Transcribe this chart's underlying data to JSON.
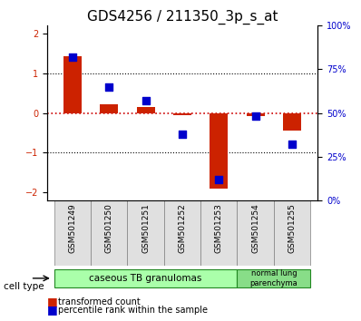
{
  "title": "GDS4256 / 211350_3p_s_at",
  "samples": [
    "GSM501249",
    "GSM501250",
    "GSM501251",
    "GSM501252",
    "GSM501253",
    "GSM501254",
    "GSM501255"
  ],
  "red_bars": [
    1.42,
    0.22,
    0.15,
    -0.05,
    -1.92,
    -0.08,
    -0.45
  ],
  "blue_squares": [
    82,
    65,
    57,
    38,
    12,
    48,
    32
  ],
  "ylim_left": [
    -2.2,
    2.2
  ],
  "ylim_right": [
    0,
    100
  ],
  "yticks_left": [
    -2,
    -1,
    0,
    1,
    2
  ],
  "yticks_right": [
    0,
    25,
    50,
    75,
    100
  ],
  "yticklabels_right": [
    "0%",
    "25%",
    "50%",
    "75%",
    "100%"
  ],
  "red_color": "#cc2200",
  "blue_color": "#0000cc",
  "dotted_line_color": "#cc0000",
  "group1_label": "caseous TB granulomas",
  "group1_indices": [
    0,
    1,
    2,
    3,
    4
  ],
  "group2_label": "normal lung\nparenchyma",
  "group2_indices": [
    5,
    6
  ],
  "group1_color": "#aaffaa",
  "group2_color": "#88dd88",
  "legend1": "transformed count",
  "legend2": "percentile rank within the sample",
  "cell_type_label": "cell type",
  "bar_width": 0.5,
  "tick_label_fontsize": 7,
  "title_fontsize": 11,
  "axis_label_fontsize": 8
}
